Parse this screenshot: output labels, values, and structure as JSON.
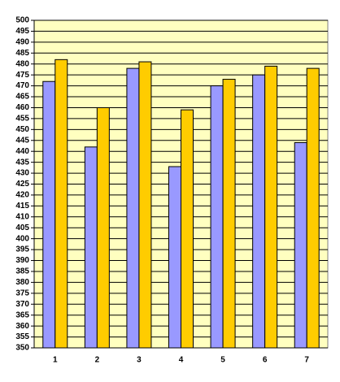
{
  "chart_data": {
    "type": "bar",
    "categories": [
      "1",
      "2",
      "3",
      "4",
      "5",
      "6",
      "7"
    ],
    "series": [
      {
        "color": "#9999ff",
        "values": [
          472,
          442,
          478,
          433,
          470,
          475,
          444
        ]
      },
      {
        "color": "#ffcc00",
        "values": [
          482,
          460,
          481,
          459,
          473,
          479,
          478
        ]
      }
    ],
    "ylim": [
      350,
      500
    ],
    "yticks": [
      350,
      355,
      360,
      365,
      370,
      375,
      380,
      385,
      390,
      395,
      400,
      405,
      410,
      415,
      420,
      425,
      430,
      435,
      440,
      445,
      450,
      455,
      460,
      465,
      470,
      475,
      480,
      485,
      490,
      495,
      500
    ],
    "grid": true,
    "background": "#ffffc0"
  }
}
